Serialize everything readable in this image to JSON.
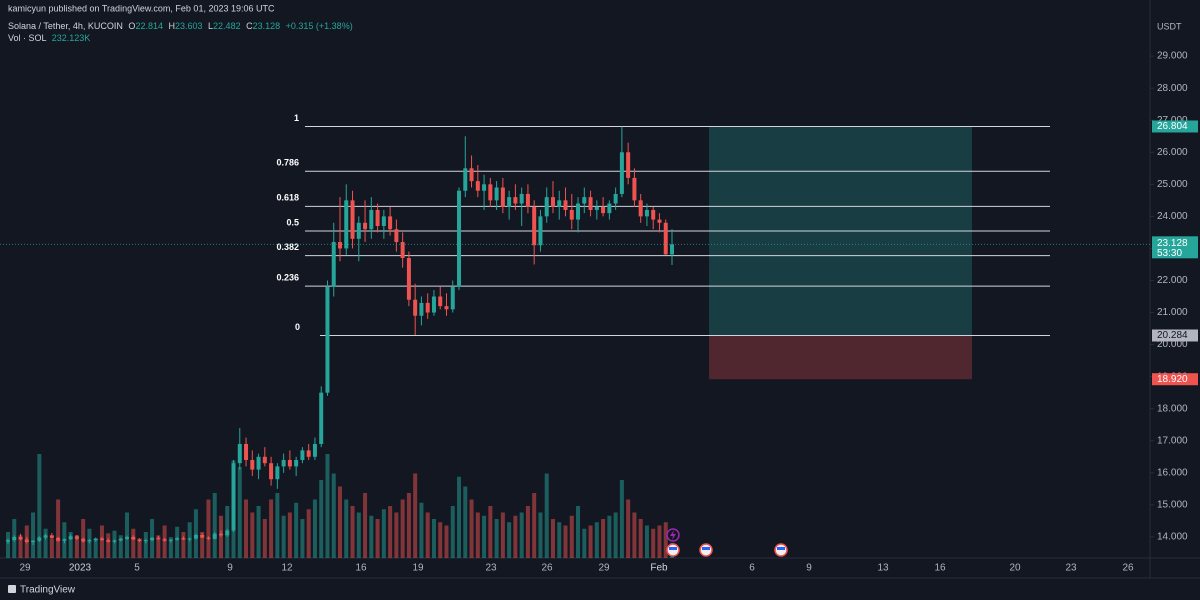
{
  "header": {
    "publisher": "kamicyun published on TradingView.com, Feb 01, 2023 19:06 UTC"
  },
  "chart_data": {
    "type": "candlestick",
    "symbol": "Solana / Tether, 4h, KUCOIN",
    "ohlc_labels": [
      "O",
      "H",
      "L",
      "C"
    ],
    "change": "+0.315 (+1.38%)",
    "volume_title": "Vol · SOL",
    "volume_label": "232.123K",
    "currency": "USDT",
    "countdown": "53:30",
    "up_color": "#26a69a",
    "down_color": "#ef5350",
    "ylim": [
      13.28,
      30.75
    ],
    "yticks": [
      {
        "value": 14,
        "label": "14.000"
      },
      {
        "value": 15,
        "label": "15.000"
      },
      {
        "value": 16,
        "label": "16.000"
      },
      {
        "value": 17,
        "label": "17.000"
      },
      {
        "value": 18,
        "label": "18.000"
      },
      {
        "value": 19,
        "label": "19.000"
      },
      {
        "value": 20,
        "label": "20.000"
      },
      {
        "value": 21,
        "label": "21.000"
      },
      {
        "value": 22,
        "label": "22.000"
      },
      {
        "value": 23,
        "label": "23.000"
      },
      {
        "value": 24,
        "label": "24.000"
      },
      {
        "value": 25,
        "label": "25.000"
      },
      {
        "value": 26,
        "label": "26.000"
      },
      {
        "value": 27,
        "label": "27.000"
      },
      {
        "value": 28,
        "label": "28.000"
      },
      {
        "value": 29,
        "label": "29.000"
      }
    ],
    "xticks": [
      "29",
      "2023",
      "5",
      "9",
      "12",
      "16",
      "19",
      "23",
      "26",
      "29",
      "Feb",
      "6",
      "9",
      "13",
      "16",
      "20",
      "23",
      "26"
    ],
    "candles": [
      [
        13.85,
        13.95,
        13.78,
        13.9
      ],
      [
        13.9,
        14.05,
        13.85,
        14.0
      ],
      [
        14.0,
        14.1,
        13.9,
        13.92
      ],
      [
        13.92,
        14.0,
        13.8,
        13.84
      ],
      [
        13.84,
        13.9,
        13.75,
        13.88
      ],
      [
        13.88,
        14.02,
        13.84,
        13.98
      ],
      [
        13.98,
        14.1,
        13.92,
        14.05
      ],
      [
        14.05,
        14.12,
        13.95,
        13.97
      ],
      [
        13.97,
        14.0,
        13.85,
        13.88
      ],
      [
        13.88,
        13.95,
        13.8,
        13.93
      ],
      [
        13.93,
        14.08,
        13.9,
        14.02
      ],
      [
        14.02,
        14.06,
        13.9,
        13.94
      ],
      [
        13.94,
        13.98,
        13.82,
        13.86
      ],
      [
        13.86,
        13.94,
        13.8,
        13.9
      ],
      [
        13.9,
        13.98,
        13.85,
        13.95
      ],
      [
        13.95,
        14.0,
        13.88,
        13.9
      ],
      [
        13.9,
        13.96,
        13.82,
        13.85
      ],
      [
        13.85,
        13.92,
        13.8,
        13.89
      ],
      [
        13.89,
        13.97,
        13.86,
        13.94
      ],
      [
        13.94,
        14.04,
        13.9,
        14.0
      ],
      [
        14.0,
        14.05,
        13.9,
        13.92
      ],
      [
        13.92,
        13.96,
        13.84,
        13.87
      ],
      [
        13.87,
        13.93,
        13.8,
        13.9
      ],
      [
        13.9,
        14.0,
        13.86,
        13.97
      ],
      [
        13.97,
        14.03,
        13.9,
        13.93
      ],
      [
        13.93,
        13.97,
        13.85,
        13.88
      ],
      [
        13.88,
        13.94,
        13.82,
        13.91
      ],
      [
        13.91,
        14.0,
        13.88,
        13.96
      ],
      [
        13.96,
        14.02,
        13.9,
        13.92
      ],
      [
        13.92,
        13.98,
        13.86,
        13.95
      ],
      [
        13.95,
        14.1,
        13.92,
        14.06
      ],
      [
        14.06,
        14.12,
        13.96,
        13.98
      ],
      [
        13.98,
        14.02,
        13.9,
        13.94
      ],
      [
        13.94,
        14.15,
        13.92,
        14.1
      ],
      [
        14.1,
        14.2,
        14.0,
        14.05
      ],
      [
        14.05,
        14.25,
        14.0,
        14.2
      ],
      [
        14.2,
        16.4,
        14.15,
        16.3
      ],
      [
        16.3,
        17.4,
        16.1,
        16.9
      ],
      [
        16.9,
        17.1,
        16.2,
        16.4
      ],
      [
        16.4,
        16.7,
        15.9,
        16.1
      ],
      [
        16.1,
        16.6,
        15.8,
        16.5
      ],
      [
        16.5,
        16.8,
        16.2,
        16.3
      ],
      [
        16.3,
        16.5,
        15.6,
        15.8
      ],
      [
        15.8,
        16.3,
        15.5,
        16.2
      ],
      [
        16.2,
        16.6,
        16.0,
        16.4
      ],
      [
        16.4,
        16.7,
        16.1,
        16.2
      ],
      [
        16.2,
        16.5,
        15.9,
        16.4
      ],
      [
        16.4,
        16.8,
        16.3,
        16.7
      ],
      [
        16.7,
        16.9,
        16.4,
        16.5
      ],
      [
        16.5,
        17.1,
        16.4,
        16.9
      ],
      [
        16.9,
        18.7,
        16.8,
        18.5
      ],
      [
        18.5,
        22.0,
        18.4,
        21.8
      ],
      [
        21.8,
        23.8,
        21.5,
        23.2
      ],
      [
        23.2,
        24.6,
        22.6,
        23.0
      ],
      [
        23.0,
        25.0,
        22.8,
        24.5
      ],
      [
        24.5,
        24.8,
        23.0,
        23.3
      ],
      [
        23.3,
        24.0,
        22.6,
        23.8
      ],
      [
        23.8,
        24.5,
        23.2,
        23.6
      ],
      [
        23.6,
        24.6,
        23.3,
        24.2
      ],
      [
        24.2,
        24.4,
        23.5,
        23.7
      ],
      [
        23.7,
        24.2,
        23.3,
        24.0
      ],
      [
        24.0,
        24.3,
        23.4,
        23.6
      ],
      [
        23.6,
        23.9,
        22.9,
        23.2
      ],
      [
        23.2,
        23.5,
        22.4,
        22.7
      ],
      [
        22.7,
        22.9,
        21.2,
        21.4
      ],
      [
        21.4,
        21.9,
        20.3,
        20.9
      ],
      [
        20.9,
        21.5,
        20.6,
        21.3
      ],
      [
        21.3,
        21.6,
        20.8,
        21.0
      ],
      [
        21.0,
        21.7,
        20.9,
        21.5
      ],
      [
        21.5,
        21.8,
        21.1,
        21.2
      ],
      [
        21.2,
        21.6,
        20.9,
        21.1
      ],
      [
        21.1,
        22.0,
        21.0,
        21.8
      ],
      [
        21.8,
        24.9,
        21.7,
        24.8
      ],
      [
        24.8,
        26.5,
        24.6,
        25.5
      ],
      [
        25.5,
        25.9,
        24.9,
        25.1
      ],
      [
        25.1,
        25.6,
        24.6,
        24.8
      ],
      [
        24.8,
        25.3,
        24.2,
        25.0
      ],
      [
        25.0,
        25.2,
        24.3,
        24.5
      ],
      [
        24.5,
        25.1,
        24.2,
        24.9
      ],
      [
        24.9,
        25.2,
        24.1,
        24.3
      ],
      [
        24.3,
        24.8,
        23.9,
        24.6
      ],
      [
        24.6,
        25.0,
        24.2,
        24.4
      ],
      [
        24.4,
        24.9,
        23.7,
        24.7
      ],
      [
        24.7,
        25.0,
        24.1,
        24.3
      ],
      [
        24.3,
        24.5,
        22.5,
        23.1
      ],
      [
        23.1,
        24.2,
        22.9,
        24.0
      ],
      [
        24.0,
        24.9,
        23.8,
        24.6
      ],
      [
        24.6,
        25.1,
        24.1,
        24.3
      ],
      [
        24.3,
        24.8,
        23.9,
        24.5
      ],
      [
        24.5,
        24.9,
        24.0,
        24.2
      ],
      [
        24.2,
        24.7,
        23.6,
        23.9
      ],
      [
        23.9,
        24.6,
        23.5,
        24.4
      ],
      [
        24.4,
        24.9,
        24.1,
        24.6
      ],
      [
        24.6,
        24.8,
        24.0,
        24.2
      ],
      [
        24.2,
        24.5,
        23.9,
        24.3
      ],
      [
        24.3,
        24.6,
        24.0,
        24.1
      ],
      [
        24.1,
        24.5,
        23.9,
        24.4
      ],
      [
        24.4,
        24.9,
        24.2,
        24.7
      ],
      [
        24.7,
        26.8,
        24.6,
        26.0
      ],
      [
        26.0,
        26.3,
        25.0,
        25.2
      ],
      [
        25.2,
        25.5,
        24.3,
        24.5
      ],
      [
        24.5,
        24.7,
        23.8,
        24.0
      ],
      [
        24.0,
        24.4,
        23.7,
        24.2
      ],
      [
        24.2,
        24.3,
        23.6,
        23.9
      ],
      [
        23.9,
        24.1,
        23.5,
        23.8
      ],
      [
        23.8,
        23.9,
        22.8,
        22.814
      ],
      [
        22.814,
        23.603,
        22.482,
        23.128
      ]
    ],
    "volumes": [
      400,
      600,
      350,
      500,
      700,
      1600,
      450,
      300,
      900,
      550,
      400,
      350,
      600,
      450,
      300,
      500,
      380,
      420,
      350,
      700,
      450,
      300,
      400,
      600,
      350,
      500,
      320,
      480,
      400,
      550,
      750,
      400,
      900,
      1000,
      650,
      800,
      1500,
      1400,
      900,
      700,
      800,
      600,
      900,
      1000,
      650,
      700,
      850,
      600,
      750,
      900,
      1200,
      1600,
      1300,
      1100,
      900,
      800,
      700,
      1000,
      650,
      600,
      750,
      800,
      700,
      900,
      1000,
      1300,
      850,
      700,
      600,
      550,
      500,
      800,
      1250,
      1100,
      900,
      700,
      650,
      800,
      600,
      700,
      550,
      650,
      700,
      800,
      1000,
      700,
      1300,
      600,
      550,
      500,
      650,
      800,
      450,
      500,
      550,
      600,
      650,
      700,
      1200,
      900,
      700,
      600,
      500,
      450,
      500,
      550,
      232.123
    ],
    "fib": {
      "top": 26.804,
      "bottom": 20.284,
      "levels": [
        1,
        0.786,
        0.618,
        0.5,
        0.382,
        0.236,
        0
      ]
    },
    "position": {
      "target": 26.804,
      "entry": 20.284,
      "stop": {
        "value": 18.92,
        "label": "18.920"
      }
    }
  },
  "footer": {
    "brand": "TradingView"
  }
}
